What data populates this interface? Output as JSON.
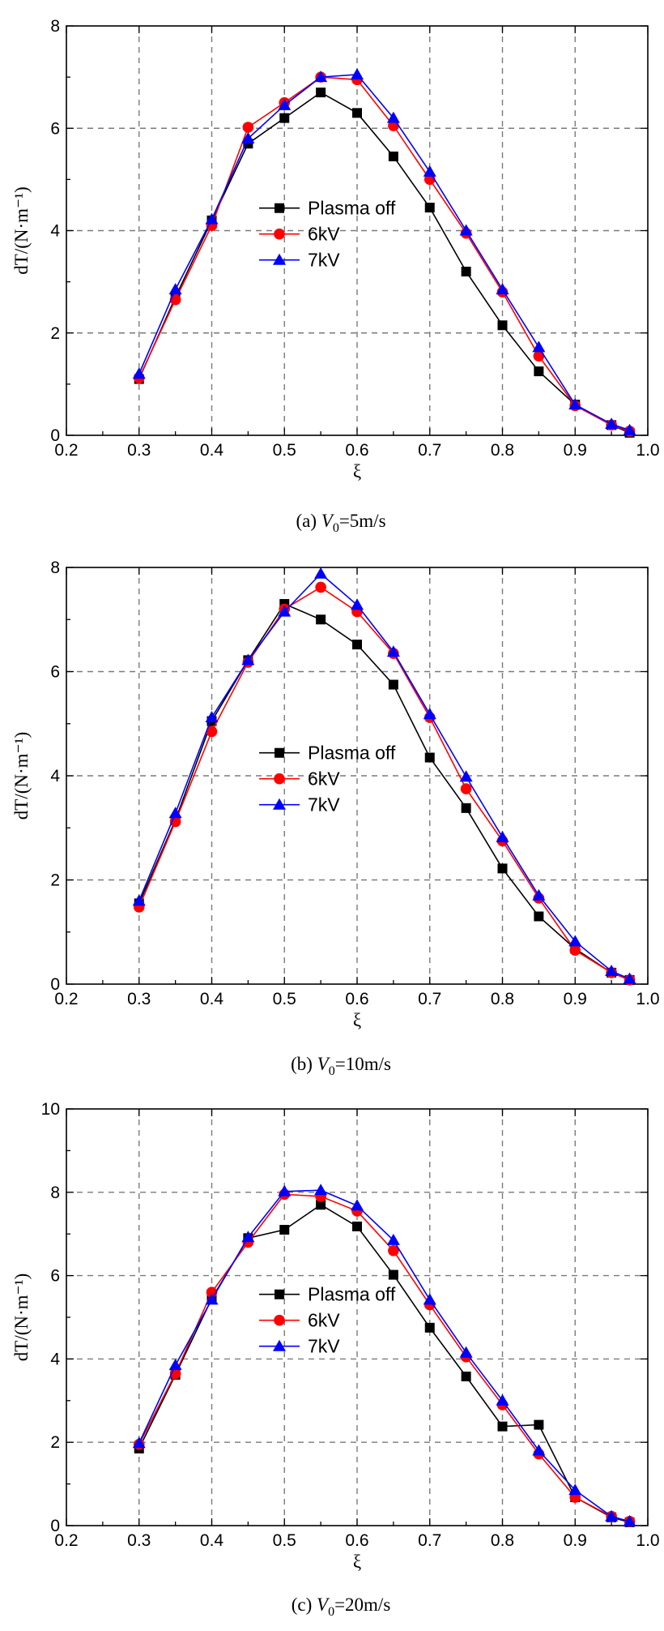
{
  "chart_data": [
    {
      "type": "line",
      "panel": "a",
      "caption": {
        "prefix": "(a) ",
        "var": "V",
        "sub": "0",
        "suffix": "=5m/s"
      },
      "xlabel": "ξ",
      "ylabel": "dT/(N·m⁻¹)",
      "xlim": [
        0.2,
        1.0
      ],
      "ylim": [
        0,
        8
      ],
      "xticks": [
        "0.2",
        "0.3",
        "0.4",
        "0.5",
        "0.6",
        "0.7",
        "0.8",
        "0.9",
        "1.0"
      ],
      "yticks": [
        "0",
        "2",
        "4",
        "6",
        "8"
      ],
      "grid": true,
      "legend": "center",
      "x": [
        0.3,
        0.35,
        0.4,
        0.45,
        0.5,
        0.55,
        0.6,
        0.65,
        0.7,
        0.75,
        0.8,
        0.85,
        0.9,
        0.95,
        0.975
      ],
      "series": [
        {
          "name": "Plasma off",
          "color": "#000000",
          "marker": "square",
          "values": [
            1.1,
            2.7,
            4.2,
            5.7,
            6.2,
            6.7,
            6.3,
            5.45,
            4.45,
            3.2,
            2.15,
            1.25,
            0.6,
            0.2,
            0.05
          ]
        },
        {
          "name": "6kV",
          "color": "#ff0000",
          "marker": "circle",
          "values": [
            1.12,
            2.65,
            4.1,
            6.02,
            6.5,
            7.0,
            6.95,
            6.05,
            5.0,
            3.95,
            2.8,
            1.55,
            0.58,
            0.2,
            0.08
          ]
        },
        {
          "name": "7kV",
          "color": "#0000ff",
          "marker": "triangle",
          "values": [
            1.2,
            2.85,
            4.22,
            5.8,
            6.45,
            7.0,
            7.05,
            6.2,
            5.15,
            4.0,
            2.85,
            1.72,
            0.6,
            0.22,
            0.1
          ]
        }
      ]
    },
    {
      "type": "line",
      "panel": "b",
      "caption": {
        "prefix": "(b) ",
        "var": "V",
        "sub": "0",
        "suffix": "=10m/s"
      },
      "xlabel": "ξ",
      "ylabel": "dT/(N·m⁻¹)",
      "xlim": [
        0.2,
        1.0
      ],
      "ylim": [
        0,
        8
      ],
      "xticks": [
        "0.2",
        "0.3",
        "0.4",
        "0.5",
        "0.6",
        "0.7",
        "0.8",
        "0.9",
        "1.0"
      ],
      "yticks": [
        "0",
        "2",
        "4",
        "6",
        "8"
      ],
      "grid": true,
      "legend": "center",
      "x": [
        0.3,
        0.35,
        0.4,
        0.45,
        0.5,
        0.55,
        0.6,
        0.65,
        0.7,
        0.75,
        0.8,
        0.85,
        0.9,
        0.95,
        0.975
      ],
      "series": [
        {
          "name": "Plasma off",
          "color": "#000000",
          "marker": "square",
          "values": [
            1.55,
            3.15,
            5.05,
            6.22,
            7.3,
            7.0,
            6.52,
            5.75,
            4.35,
            3.38,
            2.22,
            1.3,
            0.68,
            0.22,
            0.08
          ]
        },
        {
          "name": "6kV",
          "color": "#ff0000",
          "marker": "circle",
          "values": [
            1.48,
            3.12,
            4.85,
            6.18,
            7.2,
            7.62,
            7.15,
            6.35,
            5.12,
            3.75,
            2.75,
            1.65,
            0.65,
            0.22,
            0.08
          ]
        },
        {
          "name": "7kV",
          "color": "#0000ff",
          "marker": "triangle",
          "values": [
            1.6,
            3.28,
            5.12,
            6.22,
            7.15,
            7.88,
            7.28,
            6.38,
            5.18,
            3.98,
            2.82,
            1.7,
            0.82,
            0.25,
            0.1
          ]
        }
      ]
    },
    {
      "type": "line",
      "panel": "c",
      "caption": {
        "prefix": "(c) ",
        "var": "V",
        "sub": "0",
        "suffix": "=20m/s"
      },
      "xlabel": "ξ",
      "ylabel": "dT/(N·m⁻¹)",
      "xlim": [
        0.2,
        1.0
      ],
      "ylim": [
        0,
        10
      ],
      "xticks": [
        "0.2",
        "0.3",
        "0.4",
        "0.5",
        "0.6",
        "0.7",
        "0.8",
        "0.9",
        "1.0"
      ],
      "yticks": [
        "0",
        "2",
        "4",
        "6",
        "8",
        "10"
      ],
      "grid": true,
      "legend": "center",
      "x": [
        0.3,
        0.35,
        0.4,
        0.45,
        0.5,
        0.55,
        0.6,
        0.65,
        0.7,
        0.75,
        0.8,
        0.85,
        0.9,
        0.95,
        0.975
      ],
      "series": [
        {
          "name": "Plasma off",
          "color": "#000000",
          "marker": "square",
          "values": [
            1.85,
            3.62,
            5.45,
            6.9,
            7.1,
            7.7,
            7.18,
            6.02,
            4.75,
            3.58,
            2.38,
            2.42,
            0.68,
            0.2,
            0.08
          ]
        },
        {
          "name": "6kV",
          "color": "#ff0000",
          "marker": "circle",
          "values": [
            1.95,
            3.65,
            5.6,
            6.8,
            7.95,
            7.9,
            7.55,
            6.6,
            5.3,
            4.05,
            2.9,
            1.72,
            0.68,
            0.22,
            0.1
          ]
        },
        {
          "name": "7kV",
          "color": "#0000ff",
          "marker": "triangle",
          "values": [
            1.98,
            3.85,
            5.42,
            6.92,
            8.02,
            8.05,
            7.68,
            6.85,
            5.42,
            4.15,
            3.0,
            1.8,
            0.85,
            0.22,
            0.1
          ]
        }
      ]
    }
  ]
}
